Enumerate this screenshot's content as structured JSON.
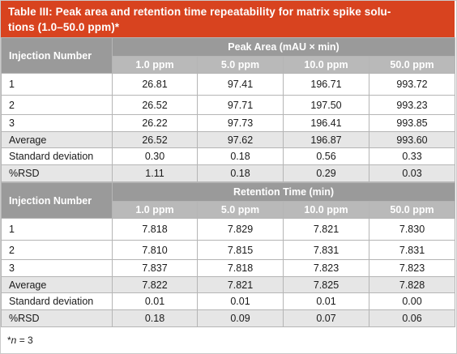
{
  "title": {
    "line1": "Table III: Peak area and retention time repeatability for matrix spike solu-",
    "line2": "tions (1.0–50.0 ppm)*"
  },
  "section1": {
    "rowhead": "Injection Number",
    "group": "Peak Area (mAU × min)",
    "columns": [
      "1.0 ppm",
      "5.0 ppm",
      "10.0 ppm",
      "50.0 ppm"
    ],
    "rows": [
      {
        "label": "1",
        "values": [
          "26.81",
          "97.41",
          "196.71",
          "993.72"
        ]
      },
      {
        "label": "2",
        "values": [
          "26.52",
          "97.71",
          "197.50",
          "993.23"
        ]
      },
      {
        "label": "3",
        "values": [
          "26.22",
          "97.73",
          "196.41",
          "993.85"
        ]
      },
      {
        "label": "Average",
        "values": [
          "26.52",
          "97.62",
          "196.87",
          "993.60"
        ]
      },
      {
        "label": "Standard deviation",
        "values": [
          "0.30",
          "0.18",
          "0.56",
          "0.33"
        ]
      },
      {
        "label": "%RSD",
        "values": [
          "1.11",
          "0.18",
          "0.29",
          "0.03"
        ]
      }
    ]
  },
  "section2": {
    "rowhead": "Injection Number",
    "group": "Retention Time (min)",
    "columns": [
      "1.0 ppm",
      "5.0 ppm",
      "10.0 ppm",
      "50.0 ppm"
    ],
    "rows": [
      {
        "label": "1",
        "values": [
          "7.818",
          "7.829",
          "7.821",
          "7.830"
        ]
      },
      {
        "label": "2",
        "values": [
          "7.810",
          "7.815",
          "7.831",
          "7.831"
        ]
      },
      {
        "label": "3",
        "values": [
          "7.837",
          "7.818",
          "7.823",
          "7.823"
        ]
      },
      {
        "label": "Average",
        "values": [
          "7.822",
          "7.821",
          "7.825",
          "7.828"
        ]
      },
      {
        "label": "Standard deviation",
        "values": [
          "0.01",
          "0.01",
          "0.01",
          "0.00"
        ]
      },
      {
        "label": "%RSD",
        "values": [
          "0.18",
          "0.09",
          "0.07",
          "0.06"
        ]
      }
    ]
  },
  "footnote": {
    "star": "*",
    "var": "n",
    "rest": " = 3"
  },
  "colors": {
    "title_background": "#d8431f",
    "header_dark": "#9a9a9a",
    "header_light": "#b9b9b9",
    "row_shade": "#e6e6e6"
  }
}
